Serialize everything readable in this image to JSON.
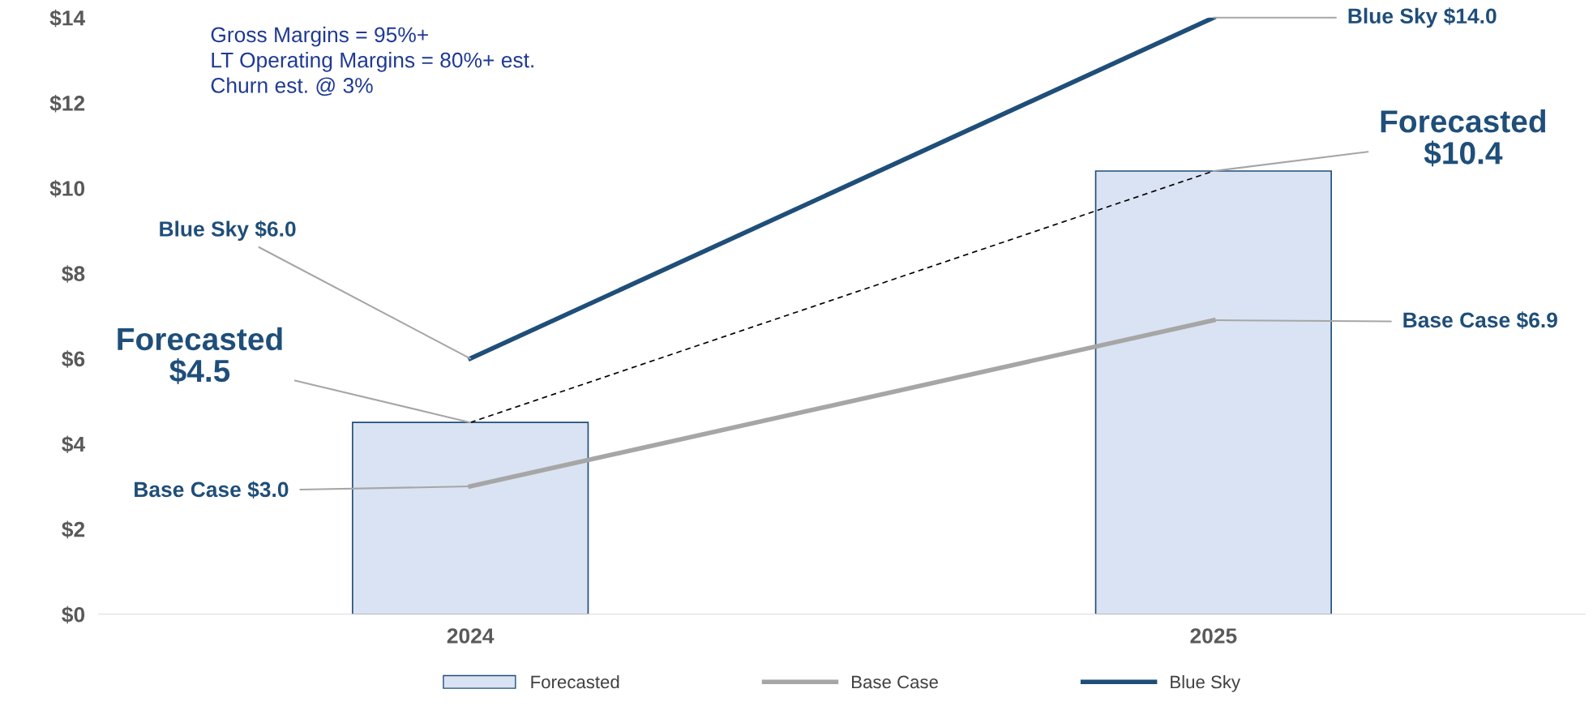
{
  "chart_data": {
    "type": "bar",
    "categories": [
      "2024",
      "2025"
    ],
    "series": [
      {
        "name": "Forecasted",
        "color": "#dae3f3",
        "values": [
          4.5,
          10.4
        ]
      },
      {
        "type": "line",
        "color": "#000000",
        "line_style": "dashed",
        "values": [
          4.5,
          10.4
        ]
      },
      {
        "name": "Base Case",
        "type": "line",
        "color": "#a6a6a6",
        "values": [
          3.0,
          6.9
        ]
      },
      {
        "name": "Blue Sky",
        "type": "line",
        "color": "#1f4e79",
        "values": [
          6.0,
          14.0
        ]
      }
    ],
    "ylim": [
      0,
      14
    ],
    "yticks": [
      {
        "value": 0,
        "label": "$0"
      },
      {
        "value": 2,
        "label": "$2"
      },
      {
        "value": 4,
        "label": "$4"
      },
      {
        "value": 6,
        "label": "$6"
      },
      {
        "value": 8,
        "label": "$8"
      },
      {
        "value": 10,
        "label": "$10"
      },
      {
        "value": 12,
        "label": "$12"
      },
      {
        "value": 14,
        "label": "$14"
      }
    ],
    "grid": false,
    "legend": "bottom",
    "annotations": [
      {
        "text": "Blue Sky $6.0",
        "x": "2024",
        "y": 6.0
      },
      {
        "text": "Blue Sky $14.0",
        "x": "2025",
        "y": 14.0
      },
      {
        "text": "Forecasted\n$4.5",
        "x": "2024",
        "y": 4.5
      },
      {
        "text": "Forecasted\n$10.4",
        "x": "2025",
        "y": 10.4
      },
      {
        "text": "Base Case $3.0",
        "x": "2024",
        "y": 3.0
      },
      {
        "text": "Base Case $6.9",
        "x": "2025",
        "y": 6.9
      },
      "Gross Margins = 95%+\nLT Operating Margins = 80%+ est.\nChurn est. @ 3%"
    ]
  }
}
